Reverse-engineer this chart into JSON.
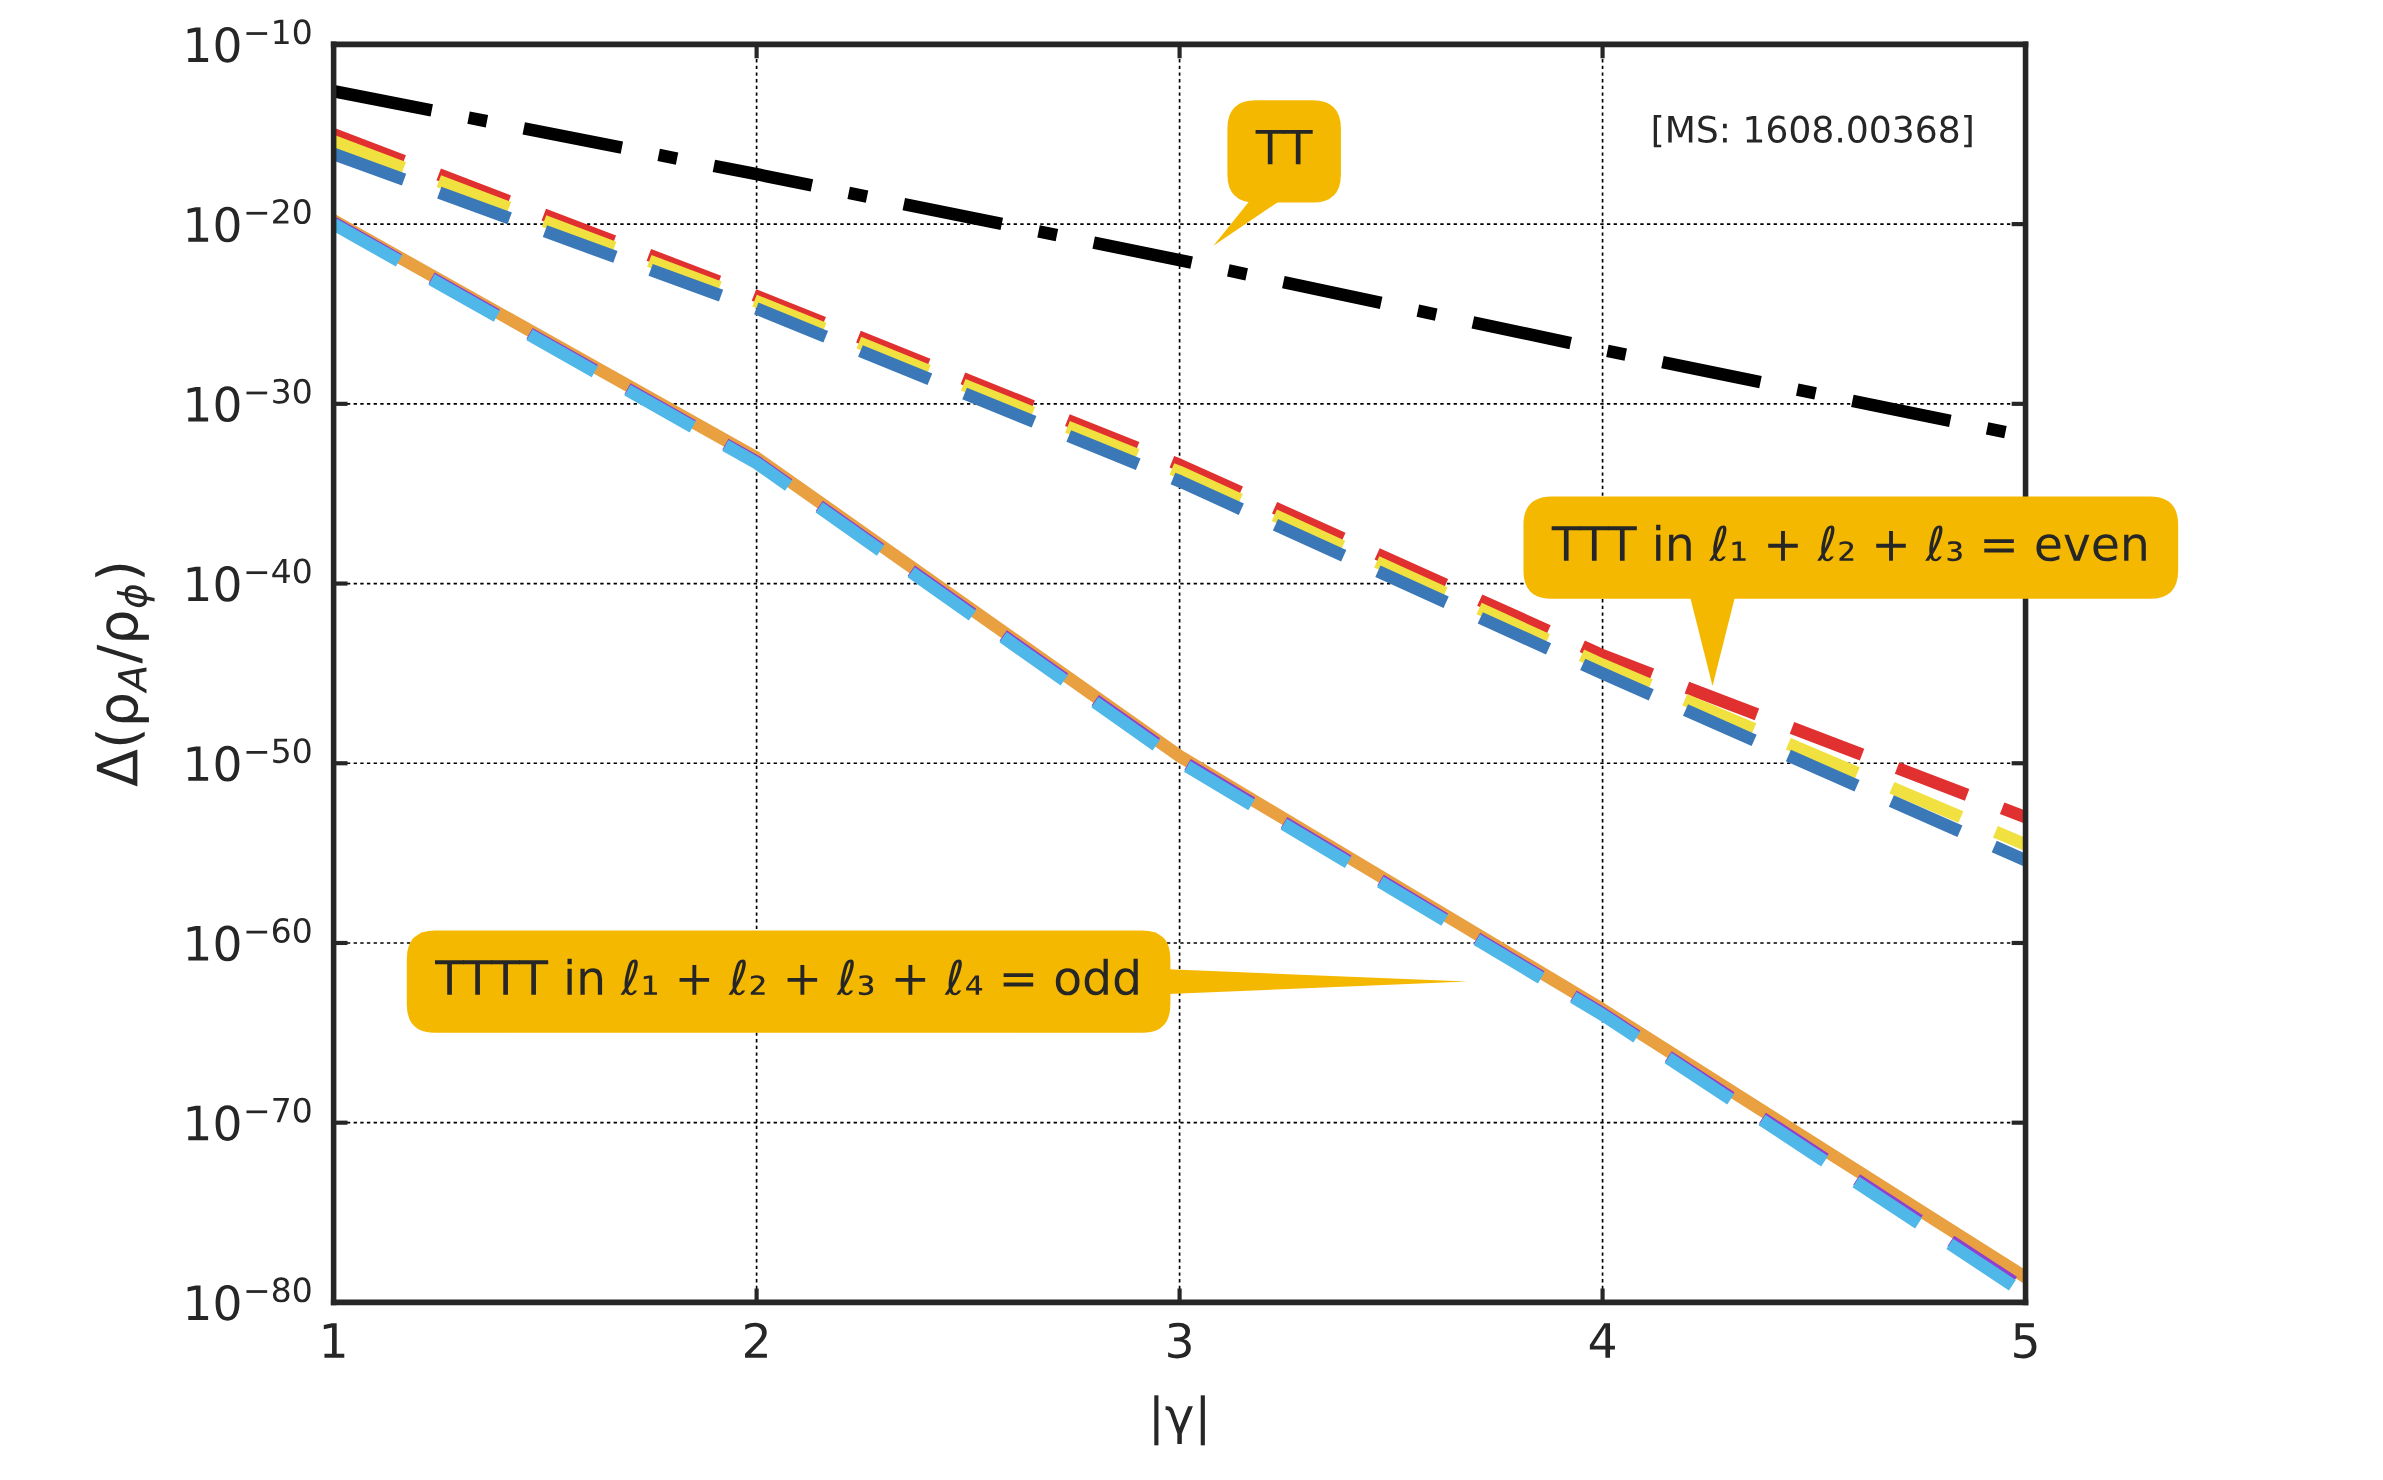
{
  "chart_data": {
    "type": "line",
    "xlabel": "|γ|",
    "ylabel": "Δ(ρ$_{A}$/ρ$_{ϕ}$)",
    "log": "y",
    "xlim": [
      1,
      5
    ],
    "ylim": [
      1e-80,
      1e-10
    ],
    "xticks": [
      1,
      2,
      3,
      4,
      5
    ],
    "yticks": [
      {
        "value": 1e-80,
        "label": "10$^{−80}$"
      },
      {
        "value": 1e-70,
        "label": "10$^{−70}$"
      },
      {
        "value": 1e-60,
        "label": "10$^{−60}$"
      },
      {
        "value": 1e-50,
        "label": "10$^{−50}$"
      },
      {
        "value": 1e-40,
        "label": "10$^{−40}$"
      },
      {
        "value": 1e-30,
        "label": "10$^{−30}$"
      },
      {
        "value": 1e-20,
        "label": "10$^{−20}$"
      },
      {
        "value": 1e-10,
        "label": "10$^{−10}$"
      }
    ],
    "grid": true,
    "legend": false,
    "x": [
      1,
      2,
      3,
      4,
      5
    ],
    "series": [
      {
        "color": "#000000",
        "line_style": "dashdot",
        "values": [
          2.5e-13,
          6e-18,
          1e-22,
          1e-27,
          1.6e-32
        ]
      },
      {
        "color": "#e03030",
        "line_style": "dashed",
        "values": [
          1e-15,
          1e-24,
          4e-34,
          1e-44,
          1e-53
        ]
      },
      {
        "color": "#f0e040",
        "line_style": "dashed",
        "values": [
          4e-16,
          5e-25,
          1.6e-34,
          3e-45,
          3e-55
        ]
      },
      {
        "color": "#3a78b8",
        "line_style": "dashed",
        "values": [
          8e-17,
          2e-25,
          5e-35,
          1e-45,
          4e-56
        ]
      },
      {
        "color": "#e8a040",
        "line_style": "solid",
        "values": [
          1.6e-20,
          1e-33,
          2.5e-50,
          2e-64,
          2.5e-79
        ]
      },
      {
        "color": "#9040d0",
        "line_style": "dashed",
        "values": [
          1.2e-20,
          6e-34,
          1.6e-50,
          1.2e-64,
          5e-80
        ]
      },
      {
        "color": "#50b8e8",
        "line_style": "dashed",
        "values": [
          1e-20,
          5e-34,
          1.2e-50,
          1e-64,
          3e-80
        ]
      }
    ],
    "annotations": [
      "TT",
      "TTT in ℓ₁ + ℓ₂ + ℓ₃ = even",
      "TTTT in ℓ₁ + ℓ₂ + ℓ₃ + ℓ₄ = odd",
      "[MS: 1608.00368]"
    ]
  }
}
